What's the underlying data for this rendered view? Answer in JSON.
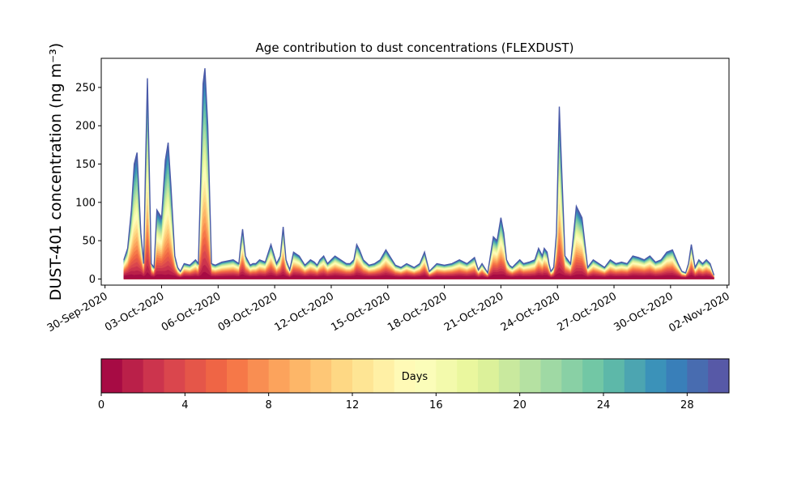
{
  "chart_data": {
    "type": "area",
    "title": "Age contribution to dust concentrations (FLEXDUST)",
    "ylabel": "DUST-401 concentration (ng m⁻³)",
    "xlabel": "",
    "ylim": [
      -8,
      288
    ],
    "yticks": [
      0,
      50,
      100,
      150,
      200,
      250
    ],
    "xlim_days": [
      -0.2,
      33.1
    ],
    "xticks": [
      "30-Sep-2020",
      "03-Oct-2020",
      "06-Oct-2020",
      "09-Oct-2020",
      "12-Oct-2020",
      "15-Oct-2020",
      "18-Oct-2020",
      "21-Oct-2020",
      "24-Oct-2020",
      "27-Oct-2020",
      "30-Oct-2020",
      "02-Nov-2020"
    ],
    "xtick_days": [
      0,
      3,
      6,
      9,
      12,
      15,
      18,
      21,
      24,
      27,
      30,
      33
    ],
    "total_concentration": {
      "t": [
        1.0,
        1.2,
        1.4,
        1.55,
        1.7,
        1.9,
        2.05,
        2.15,
        2.25,
        2.45,
        2.6,
        2.75,
        3.0,
        3.2,
        3.35,
        3.5,
        3.7,
        3.85,
        4.0,
        4.2,
        4.5,
        4.8,
        4.95,
        5.1,
        5.2,
        5.3,
        5.45,
        5.65,
        5.85,
        6.2,
        6.8,
        7.1,
        7.2,
        7.3,
        7.45,
        7.7,
        7.85,
        8.0,
        8.2,
        8.5,
        8.8,
        9.1,
        9.3,
        9.45,
        9.6,
        9.8,
        10.0,
        10.3,
        10.6,
        10.9,
        11.1,
        11.25,
        11.4,
        11.6,
        11.8,
        12.0,
        12.2,
        12.5,
        12.8,
        13.0,
        13.2,
        13.35,
        13.5,
        13.7,
        14.0,
        14.3,
        14.6,
        14.9,
        15.15,
        15.4,
        15.7,
        16.0,
        16.4,
        16.7,
        16.95,
        17.2,
        17.6,
        18.0,
        18.4,
        18.8,
        19.2,
        19.6,
        19.8,
        20.0,
        20.3,
        20.6,
        20.8,
        21.0,
        21.15,
        21.3,
        21.45,
        21.6,
        21.8,
        22.0,
        22.2,
        22.5,
        22.8,
        23.0,
        23.1,
        23.2,
        23.3,
        23.45,
        23.55,
        23.65,
        23.8,
        23.95,
        24.1,
        24.4,
        24.7,
        25.0,
        25.3,
        25.6,
        25.9,
        26.2,
        26.5,
        26.8,
        27.1,
        27.4,
        27.7,
        28.0,
        28.3,
        28.6,
        28.9,
        29.2,
        29.5,
        29.8,
        30.1,
        30.4,
        30.6,
        30.8,
        30.95,
        31.1,
        31.3,
        31.5,
        31.7,
        31.9,
        32.1,
        32.3
      ],
      "v": [
        25,
        40,
        90,
        150,
        165,
        60,
        20,
        150,
        262,
        20,
        15,
        90,
        80,
        155,
        178,
        120,
        30,
        15,
        10,
        20,
        18,
        25,
        20,
        150,
        255,
        275,
        200,
        20,
        18,
        22,
        25,
        20,
        45,
        65,
        30,
        18,
        20,
        20,
        25,
        22,
        45,
        20,
        30,
        68,
        25,
        12,
        35,
        30,
        18,
        25,
        22,
        18,
        25,
        30,
        20,
        25,
        30,
        25,
        20,
        20,
        25,
        45,
        38,
        25,
        18,
        20,
        25,
        38,
        28,
        18,
        15,
        20,
        15,
        20,
        35,
        10,
        20,
        18,
        20,
        25,
        20,
        28,
        12,
        20,
        8,
        55,
        50,
        80,
        60,
        25,
        18,
        15,
        20,
        25,
        20,
        22,
        25,
        40,
        35,
        30,
        40,
        35,
        20,
        10,
        15,
        60,
        225,
        30,
        20,
        95,
        80,
        15,
        25,
        20,
        15,
        25,
        20,
        22,
        20,
        30,
        28,
        25,
        30,
        22,
        25,
        35,
        38,
        20,
        10,
        8,
        20,
        45,
        15,
        25,
        20,
        25,
        20,
        5
      ]
    },
    "colorbar": {
      "label": "Days",
      "min": 0,
      "max": 30,
      "ticks": [
        0,
        4,
        8,
        12,
        16,
        20,
        24,
        28
      ],
      "bins": 30,
      "colormap": [
        "#9e0142",
        "#d53e4f",
        "#f46d43",
        "#fdae61",
        "#fee08b",
        "#ffffbf",
        "#e6f598",
        "#abdda4",
        "#66c2a5",
        "#3288bd",
        "#5e4fa2"
      ]
    }
  }
}
